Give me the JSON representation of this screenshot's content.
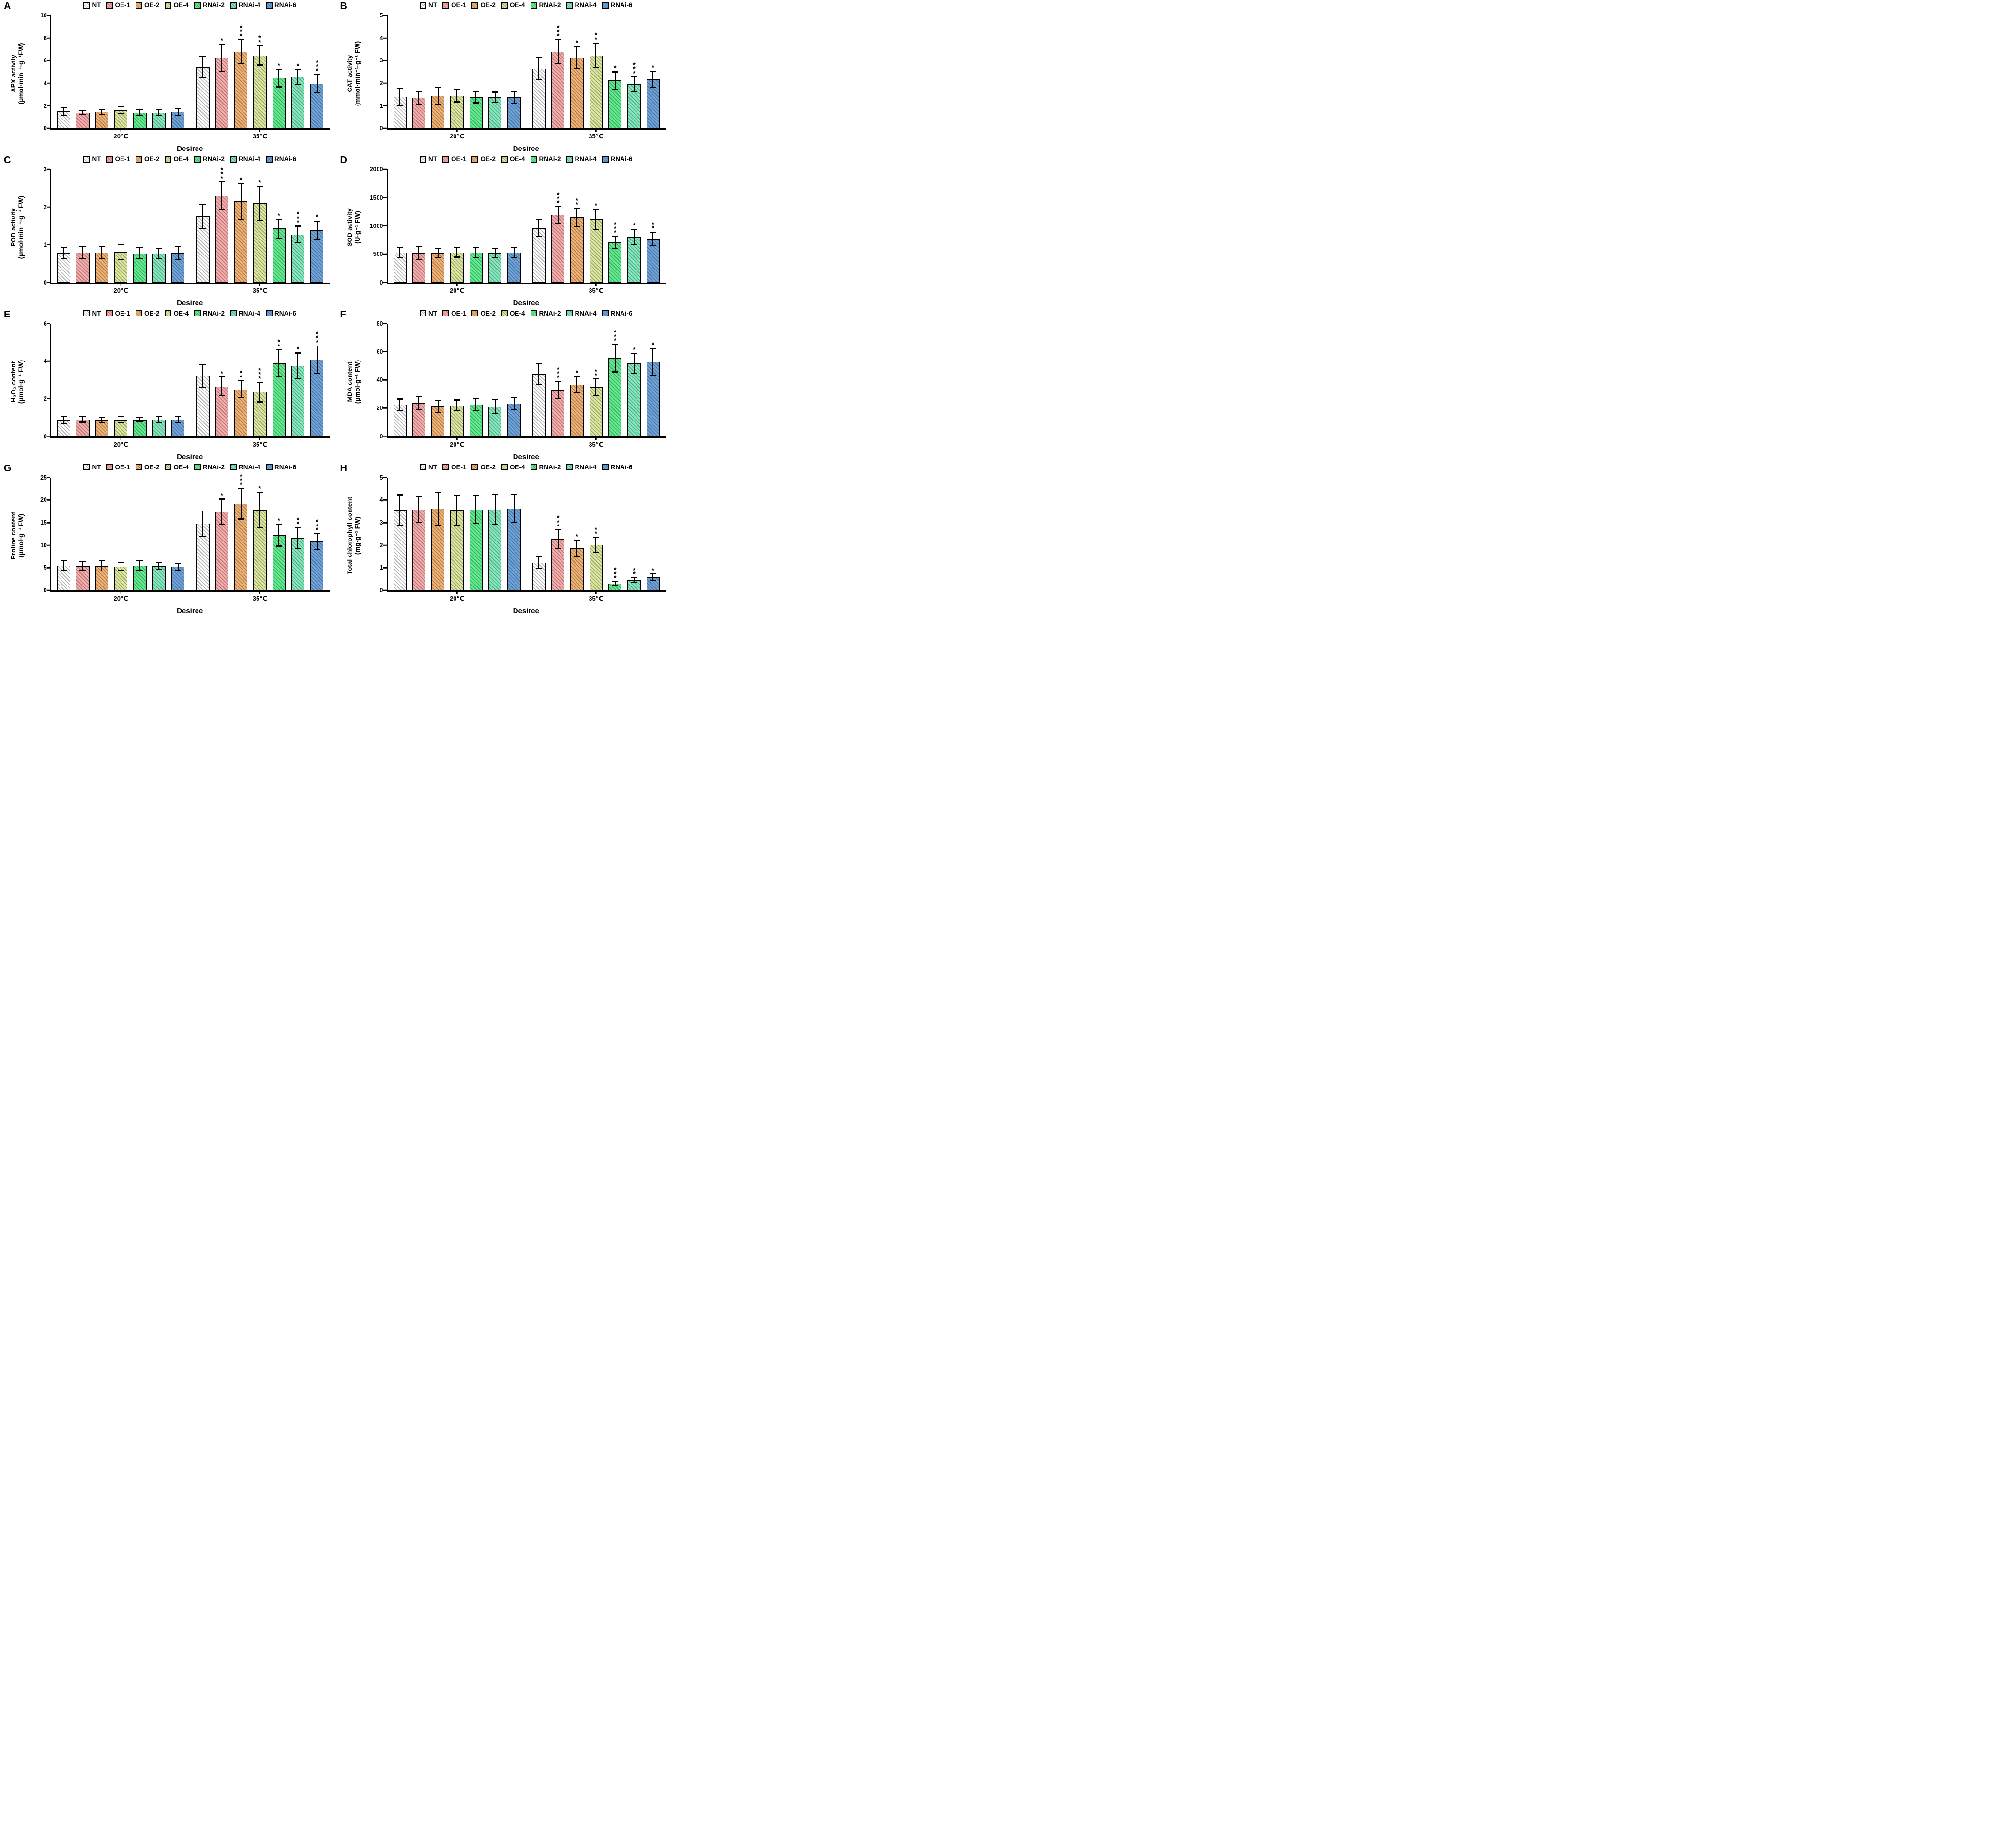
{
  "figure": {
    "x_axis_title": "Desiree",
    "group_labels": [
      "20℃",
      "35℃"
    ],
    "series_labels": [
      "NT",
      "OE-1",
      "OE-2",
      "OE-4",
      "RNAi-2",
      "RNAi-4",
      "RNAi-6"
    ],
    "series_colors": [
      "#ffffff",
      "#f7abab",
      "#f0b173",
      "#dde79e",
      "#5eee8e",
      "#83e9bf",
      "#6ea4db"
    ],
    "hatch_style": "black-diagonal-hatch",
    "error_bar_color": "#000000"
  },
  "chart_data": [
    {
      "type": "bar",
      "panel_label": "A",
      "title": "APX activity",
      "ylabel_line1": "APX activity",
      "ylabel_line2": "(μmol·min⁻¹·g⁻¹FW)",
      "ylim": [
        0,
        10
      ],
      "yticks": [
        0,
        2,
        4,
        6,
        8,
        10
      ],
      "categories": [
        "20℃",
        "35℃"
      ],
      "series": [
        "NT",
        "OE-1",
        "OE-2",
        "OE-4",
        "RNAi-2",
        "RNAi-4",
        "RNAi-6"
      ],
      "values_20C": [
        1.5,
        1.4,
        1.45,
        1.6,
        1.4,
        1.4,
        1.45
      ],
      "errors_20C": [
        0.35,
        0.2,
        0.2,
        0.32,
        0.25,
        0.25,
        0.28
      ],
      "sig_20C": [
        "",
        "",
        "",
        "",
        "",
        "",
        ""
      ],
      "values_35C": [
        5.4,
        6.25,
        6.8,
        6.45,
        4.45,
        4.55,
        3.95
      ],
      "errors_35C": [
        0.95,
        1.2,
        1.05,
        0.85,
        0.78,
        0.65,
        0.82
      ],
      "sig_35C": [
        "",
        "*",
        "***",
        "**",
        "*",
        "*",
        "***"
      ]
    },
    {
      "type": "bar",
      "panel_label": "B",
      "title": "CAT activity",
      "ylabel_line1": "CAT activity",
      "ylabel_line2": "(mmol·min⁻¹·g⁻¹ FW)",
      "ylim": [
        0,
        5
      ],
      "yticks": [
        0,
        1,
        2,
        3,
        4,
        5
      ],
      "categories": [
        "20℃",
        "35℃"
      ],
      "series": [
        "NT",
        "OE-1",
        "OE-2",
        "OE-4",
        "RNAi-2",
        "RNAi-4",
        "RNAi-6"
      ],
      "values_20C": [
        1.4,
        1.35,
        1.45,
        1.45,
        1.37,
        1.38,
        1.37
      ],
      "errors_20C": [
        0.38,
        0.28,
        0.38,
        0.28,
        0.24,
        0.22,
        0.27
      ],
      "sig_20C": [
        "",
        "",
        "",
        "",
        "",
        "",
        ""
      ],
      "values_35C": [
        2.65,
        3.4,
        3.13,
        3.23,
        2.12,
        1.95,
        2.18
      ],
      "errors_35C": [
        0.5,
        0.52,
        0.48,
        0.55,
        0.38,
        0.33,
        0.35
      ],
      "sig_35C": [
        "",
        "***",
        "*",
        "**",
        "*",
        "***",
        "*"
      ]
    },
    {
      "type": "bar",
      "panel_label": "C",
      "title": "POD activity",
      "ylabel_line1": "POD activity",
      "ylabel_line2": "(μmol·min⁻¹·g⁻¹ FW)",
      "ylim": [
        0,
        3
      ],
      "yticks": [
        0,
        1,
        2,
        3
      ],
      "categories": [
        "20℃",
        "35℃"
      ],
      "series": [
        "NT",
        "OE-1",
        "OE-2",
        "OE-4",
        "RNAi-2",
        "RNAi-4",
        "RNAi-6"
      ],
      "values_20C": [
        0.78,
        0.79,
        0.79,
        0.8,
        0.77,
        0.76,
        0.78
      ],
      "errors_20C": [
        0.14,
        0.15,
        0.16,
        0.2,
        0.15,
        0.13,
        0.18
      ],
      "sig_20C": [
        "",
        "",
        "",
        "",
        "",
        "",
        ""
      ],
      "values_35C": [
        1.75,
        2.3,
        2.15,
        2.1,
        1.43,
        1.27,
        1.38
      ],
      "errors_35C": [
        0.32,
        0.37,
        0.48,
        0.45,
        0.25,
        0.22,
        0.25
      ],
      "sig_35C": [
        "",
        "***",
        "*",
        "*",
        "*",
        "***",
        "*"
      ]
    },
    {
      "type": "bar",
      "panel_label": "D",
      "title": "SOD activity",
      "ylabel_line1": "SOD activity",
      "ylabel_line2": "(U·g⁻¹ FW)",
      "ylim": [
        0,
        2000
      ],
      "yticks": [
        0,
        500,
        1000,
        1500,
        2000
      ],
      "categories": [
        "20℃",
        "35℃"
      ],
      "series": [
        "NT",
        "OE-1",
        "OE-2",
        "OE-4",
        "RNAi-2",
        "RNAi-4",
        "RNAi-6"
      ],
      "values_20C": [
        525,
        520,
        515,
        530,
        530,
        520,
        525
      ],
      "errors_20C": [
        90,
        120,
        85,
        85,
        90,
        80,
        90
      ],
      "sig_20C": [
        "",
        "",
        "",
        "",
        "",
        "",
        ""
      ],
      "values_35C": [
        960,
        1195,
        1150,
        1115,
        710,
        805,
        770
      ],
      "errors_35C": [
        150,
        145,
        160,
        180,
        105,
        135,
        120
      ],
      "sig_35C": [
        "",
        "***",
        "**",
        "*",
        "***",
        "*",
        "**"
      ]
    },
    {
      "type": "bar",
      "panel_label": "E",
      "title": "H₂O₂ content",
      "ylabel_line1": "H₂O₂ content",
      "ylabel_line2": "(μmol·g⁻¹ FW)",
      "ylim": [
        0,
        6
      ],
      "yticks": [
        0,
        2,
        4,
        6
      ],
      "categories": [
        "20℃",
        "35℃"
      ],
      "series": [
        "NT",
        "OE-1",
        "OE-2",
        "OE-4",
        "RNAi-2",
        "RNAi-4",
        "RNAi-6"
      ],
      "values_20C": [
        0.87,
        0.9,
        0.86,
        0.88,
        0.88,
        0.89,
        0.9
      ],
      "errors_20C": [
        0.18,
        0.15,
        0.15,
        0.17,
        0.12,
        0.15,
        0.17
      ],
      "sig_20C": [
        "",
        "",
        "",
        "",
        "",
        "",
        ""
      ],
      "values_35C": [
        3.2,
        2.65,
        2.5,
        2.35,
        3.88,
        3.75,
        4.08
      ],
      "errors_35C": [
        0.6,
        0.5,
        0.45,
        0.52,
        0.72,
        0.68,
        0.72
      ],
      "sig_35C": [
        "",
        "*",
        "**",
        "***",
        "**",
        "*",
        "***"
      ]
    },
    {
      "type": "bar",
      "panel_label": "F",
      "title": "MDA content",
      "ylabel_line1": "MDA content",
      "ylabel_line2": "(μmol·g⁻¹ FW)",
      "ylim": [
        0,
        80
      ],
      "yticks": [
        0,
        20,
        40,
        60,
        80
      ],
      "categories": [
        "20℃",
        "35℃"
      ],
      "series": [
        "NT",
        "OE-1",
        "OE-2",
        "OE-4",
        "RNAi-2",
        "RNAi-4",
        "RNAi-6"
      ],
      "values_20C": [
        22.5,
        23.5,
        21.2,
        22,
        22.5,
        21,
        23.2
      ],
      "errors_20C": [
        4,
        4.5,
        4.3,
        3.8,
        4.5,
        5,
        4
      ],
      "sig_20C": [
        "",
        "",
        "",
        "",
        "",
        "",
        ""
      ],
      "values_35C": [
        44.3,
        32.8,
        36.5,
        34.8,
        55.5,
        51.8,
        52.8
      ],
      "errors_35C": [
        7.5,
        6.2,
        5.8,
        5.8,
        9.8,
        7,
        9.5
      ],
      "sig_35C": [
        "",
        "***",
        "*",
        "**",
        "***",
        "*",
        "*"
      ]
    },
    {
      "type": "bar",
      "panel_label": "G",
      "title": "Proline content",
      "ylabel_line1": "Proline content",
      "ylabel_line2": "(μmol·g⁻¹ FW)",
      "ylim": [
        0,
        25
      ],
      "yticks": [
        0,
        5,
        10,
        15,
        20,
        25
      ],
      "categories": [
        "20℃",
        "35℃"
      ],
      "series": [
        "NT",
        "OE-1",
        "OE-2",
        "OE-4",
        "RNAi-2",
        "RNAi-4",
        "RNAi-6"
      ],
      "values_20C": [
        5.5,
        5.4,
        5.4,
        5.3,
        5.5,
        5.4,
        5.2
      ],
      "errors_20C": [
        1.0,
        1.0,
        1.1,
        0.9,
        1.0,
        0.8,
        0.8
      ],
      "sig_20C": [
        "",
        "",
        "",
        "",
        "",
        "",
        ""
      ],
      "values_35C": [
        14.8,
        17.4,
        19.2,
        17.8,
        12.2,
        11.6,
        10.8
      ],
      "errors_35C": [
        2.8,
        2.8,
        3.4,
        3.9,
        2.4,
        2.3,
        1.7
      ],
      "sig_35C": [
        "",
        "*",
        "***",
        "*",
        "*",
        "**",
        "***"
      ]
    },
    {
      "type": "bar",
      "panel_label": "H",
      "title": "Total chlorophyll content",
      "ylabel_line1": "Total chlorophyll content",
      "ylabel_line2": "(mg·g⁻¹ FW)",
      "ylim": [
        0,
        5
      ],
      "yticks": [
        0,
        1,
        2,
        3,
        4,
        5
      ],
      "categories": [
        "20℃",
        "35℃"
      ],
      "series": [
        "NT",
        "OE-1",
        "OE-2",
        "OE-4",
        "RNAi-2",
        "RNAi-4",
        "RNAi-6"
      ],
      "values_20C": [
        3.55,
        3.57,
        3.62,
        3.55,
        3.57,
        3.58,
        3.63
      ],
      "errors_20C": [
        0.68,
        0.57,
        0.73,
        0.67,
        0.62,
        0.67,
        0.62
      ],
      "sig_20C": [
        "",
        "",
        "",
        "",
        "",
        "",
        ""
      ],
      "values_35C": [
        1.23,
        2.27,
        1.87,
        2.02,
        0.3,
        0.45,
        0.58
      ],
      "errors_35C": [
        0.25,
        0.4,
        0.36,
        0.33,
        0.08,
        0.1,
        0.15
      ],
      "sig_35C": [
        "",
        "***",
        "*",
        "**",
        "***",
        "**",
        "*"
      ]
    }
  ]
}
